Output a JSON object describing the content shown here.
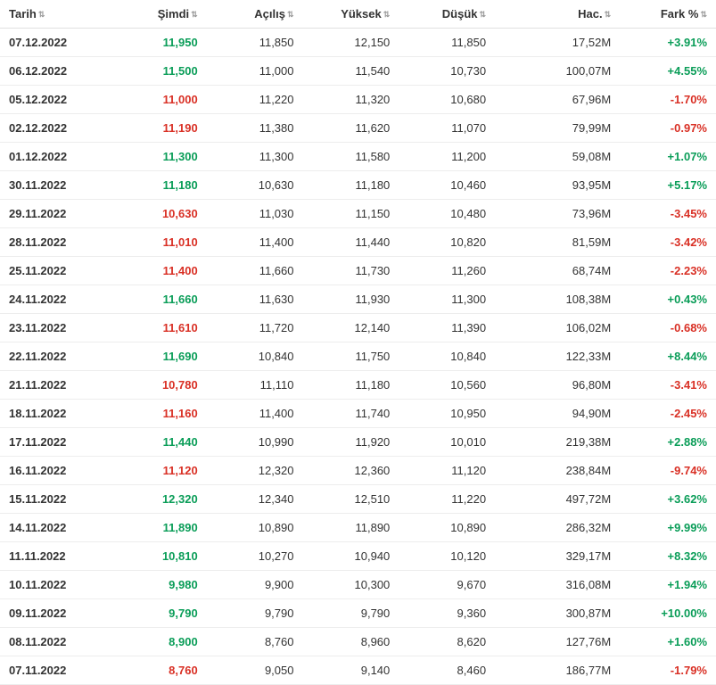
{
  "table": {
    "columns": [
      {
        "key": "date",
        "label": "Tarih",
        "align": "left"
      },
      {
        "key": "now",
        "label": "Şimdi",
        "align": "right"
      },
      {
        "key": "open",
        "label": "Açılış",
        "align": "right"
      },
      {
        "key": "high",
        "label": "Yüksek",
        "align": "right"
      },
      {
        "key": "low",
        "label": "Düşük",
        "align": "right"
      },
      {
        "key": "vol",
        "label": "Hac.",
        "align": "right"
      },
      {
        "key": "chg",
        "label": "Fark %",
        "align": "right"
      }
    ],
    "colors": {
      "up": "#0a9d58",
      "down": "#d93025",
      "text": "#333333",
      "border": "#ededed",
      "header_border": "#e0e0e0"
    },
    "rows": [
      {
        "date": "07.12.2022",
        "now": "11,950",
        "now_dir": "up",
        "open": "11,850",
        "high": "12,150",
        "low": "11,850",
        "vol": "17,52M",
        "chg": "+3.91%",
        "chg_dir": "up"
      },
      {
        "date": "06.12.2022",
        "now": "11,500",
        "now_dir": "up",
        "open": "11,000",
        "high": "11,540",
        "low": "10,730",
        "vol": "100,07M",
        "chg": "+4.55%",
        "chg_dir": "up"
      },
      {
        "date": "05.12.2022",
        "now": "11,000",
        "now_dir": "down",
        "open": "11,220",
        "high": "11,320",
        "low": "10,680",
        "vol": "67,96M",
        "chg": "-1.70%",
        "chg_dir": "down"
      },
      {
        "date": "02.12.2022",
        "now": "11,190",
        "now_dir": "down",
        "open": "11,380",
        "high": "11,620",
        "low": "11,070",
        "vol": "79,99M",
        "chg": "-0.97%",
        "chg_dir": "down"
      },
      {
        "date": "01.12.2022",
        "now": "11,300",
        "now_dir": "up",
        "open": "11,300",
        "high": "11,580",
        "low": "11,200",
        "vol": "59,08M",
        "chg": "+1.07%",
        "chg_dir": "up"
      },
      {
        "date": "30.11.2022",
        "now": "11,180",
        "now_dir": "up",
        "open": "10,630",
        "high": "11,180",
        "low": "10,460",
        "vol": "93,95M",
        "chg": "+5.17%",
        "chg_dir": "up"
      },
      {
        "date": "29.11.2022",
        "now": "10,630",
        "now_dir": "down",
        "open": "11,030",
        "high": "11,150",
        "low": "10,480",
        "vol": "73,96M",
        "chg": "-3.45%",
        "chg_dir": "down"
      },
      {
        "date": "28.11.2022",
        "now": "11,010",
        "now_dir": "down",
        "open": "11,400",
        "high": "11,440",
        "low": "10,820",
        "vol": "81,59M",
        "chg": "-3.42%",
        "chg_dir": "down"
      },
      {
        "date": "25.11.2022",
        "now": "11,400",
        "now_dir": "down",
        "open": "11,660",
        "high": "11,730",
        "low": "11,260",
        "vol": "68,74M",
        "chg": "-2.23%",
        "chg_dir": "down"
      },
      {
        "date": "24.11.2022",
        "now": "11,660",
        "now_dir": "up",
        "open": "11,630",
        "high": "11,930",
        "low": "11,300",
        "vol": "108,38M",
        "chg": "+0.43%",
        "chg_dir": "up"
      },
      {
        "date": "23.11.2022",
        "now": "11,610",
        "now_dir": "down",
        "open": "11,720",
        "high": "12,140",
        "low": "11,390",
        "vol": "106,02M",
        "chg": "-0.68%",
        "chg_dir": "down"
      },
      {
        "date": "22.11.2022",
        "now": "11,690",
        "now_dir": "up",
        "open": "10,840",
        "high": "11,750",
        "low": "10,840",
        "vol": "122,33M",
        "chg": "+8.44%",
        "chg_dir": "up"
      },
      {
        "date": "21.11.2022",
        "now": "10,780",
        "now_dir": "down",
        "open": "11,110",
        "high": "11,180",
        "low": "10,560",
        "vol": "96,80M",
        "chg": "-3.41%",
        "chg_dir": "down"
      },
      {
        "date": "18.11.2022",
        "now": "11,160",
        "now_dir": "down",
        "open": "11,400",
        "high": "11,740",
        "low": "10,950",
        "vol": "94,90M",
        "chg": "-2.45%",
        "chg_dir": "down"
      },
      {
        "date": "17.11.2022",
        "now": "11,440",
        "now_dir": "up",
        "open": "10,990",
        "high": "11,920",
        "low": "10,010",
        "vol": "219,38M",
        "chg": "+2.88%",
        "chg_dir": "up"
      },
      {
        "date": "16.11.2022",
        "now": "11,120",
        "now_dir": "down",
        "open": "12,320",
        "high": "12,360",
        "low": "11,120",
        "vol": "238,84M",
        "chg": "-9.74%",
        "chg_dir": "down"
      },
      {
        "date": "15.11.2022",
        "now": "12,320",
        "now_dir": "up",
        "open": "12,340",
        "high": "12,510",
        "low": "11,220",
        "vol": "497,72M",
        "chg": "+3.62%",
        "chg_dir": "up"
      },
      {
        "date": "14.11.2022",
        "now": "11,890",
        "now_dir": "up",
        "open": "10,890",
        "high": "11,890",
        "low": "10,890",
        "vol": "286,32M",
        "chg": "+9.99%",
        "chg_dir": "up"
      },
      {
        "date": "11.11.2022",
        "now": "10,810",
        "now_dir": "up",
        "open": "10,270",
        "high": "10,940",
        "low": "10,120",
        "vol": "329,17M",
        "chg": "+8.32%",
        "chg_dir": "up"
      },
      {
        "date": "10.11.2022",
        "now": "9,980",
        "now_dir": "up",
        "open": "9,900",
        "high": "10,300",
        "low": "9,670",
        "vol": "316,08M",
        "chg": "+1.94%",
        "chg_dir": "up"
      },
      {
        "date": "09.11.2022",
        "now": "9,790",
        "now_dir": "up",
        "open": "9,790",
        "high": "9,790",
        "low": "9,360",
        "vol": "300,87M",
        "chg": "+10.00%",
        "chg_dir": "up"
      },
      {
        "date": "08.11.2022",
        "now": "8,900",
        "now_dir": "up",
        "open": "8,760",
        "high": "8,960",
        "low": "8,620",
        "vol": "127,76M",
        "chg": "+1.60%",
        "chg_dir": "up"
      },
      {
        "date": "07.11.2022",
        "now": "8,760",
        "now_dir": "down",
        "open": "9,050",
        "high": "9,140",
        "low": "8,460",
        "vol": "186,77M",
        "chg": "-1.79%",
        "chg_dir": "down"
      }
    ]
  }
}
